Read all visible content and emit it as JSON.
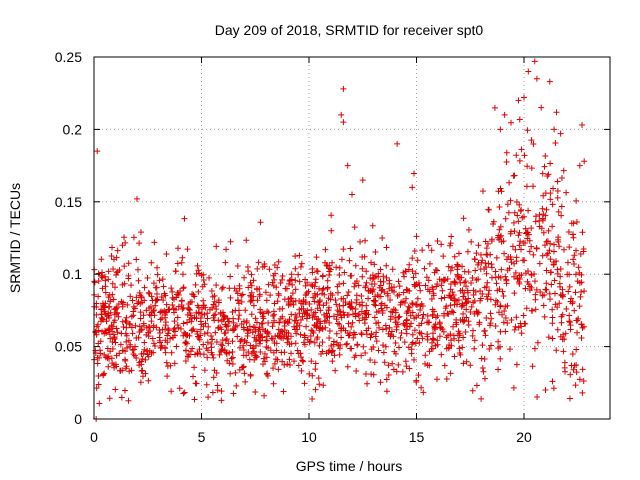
{
  "chart_data": {
    "type": "scatter",
    "title": "Day 209 of 2018, SRMTID for receiver spt0",
    "xlabel": "GPS time / hours",
    "ylabel": "SRMTID / TECUs",
    "xlim": [
      0,
      24
    ],
    "ylim": [
      0,
      0.25
    ],
    "xticks": [
      0,
      5,
      10,
      15,
      20
    ],
    "xtick_labels": [
      "0",
      "5",
      "10",
      "15",
      "20"
    ],
    "yticks": [
      0,
      0.05,
      0.1,
      0.15,
      0.2,
      0.25
    ],
    "ytick_labels": [
      "0",
      "0.05",
      "0.1",
      "0.15",
      "0.2",
      "0.25"
    ],
    "grid": true,
    "marker": "+",
    "marker_color": "#e00000",
    "x_data_range": [
      0,
      22.8
    ],
    "series": [
      {
        "name": "SRMTID",
        "points_note": "Approx. 2,000 points from 0 to ~22.8 h; bulk between 0.02 and 0.14 TECU, centred near 0.07; activity and spread increase after ~19 h reaching ~0.25.",
        "profile": [
          {
            "hour": 0,
            "median": 0.065
          },
          {
            "hour": 2,
            "median": 0.068
          },
          {
            "hour": 4,
            "median": 0.065
          },
          {
            "hour": 6,
            "median": 0.065
          },
          {
            "hour": 8,
            "median": 0.065
          },
          {
            "hour": 10,
            "median": 0.07
          },
          {
            "hour": 12,
            "median": 0.075
          },
          {
            "hour": 14,
            "median": 0.075
          },
          {
            "hour": 16,
            "median": 0.075
          },
          {
            "hour": 18,
            "median": 0.085
          },
          {
            "hour": 19,
            "median": 0.1
          },
          {
            "hour": 20,
            "median": 0.12
          },
          {
            "hour": 21,
            "median": 0.11
          },
          {
            "hour": 22,
            "median": 0.09
          },
          {
            "hour": 22.8,
            "median": 0.08
          }
        ],
        "outliers": [
          {
            "x": 0.15,
            "y": 0.185
          },
          {
            "x": 0.1,
            "y": 0.0
          },
          {
            "x": 2.0,
            "y": 0.152
          },
          {
            "x": 11.6,
            "y": 0.228
          },
          {
            "x": 11.5,
            "y": 0.21
          },
          {
            "x": 11.6,
            "y": 0.205
          },
          {
            "x": 11.8,
            "y": 0.175
          },
          {
            "x": 12.0,
            "y": 0.155
          },
          {
            "x": 12.5,
            "y": 0.165
          },
          {
            "x": 14.1,
            "y": 0.19
          },
          {
            "x": 14.8,
            "y": 0.16
          },
          {
            "x": 18.9,
            "y": 0.2
          },
          {
            "x": 19.1,
            "y": 0.21
          },
          {
            "x": 20.0,
            "y": 0.222
          },
          {
            "x": 20.2,
            "y": 0.24
          },
          {
            "x": 20.5,
            "y": 0.247
          },
          {
            "x": 20.6,
            "y": 0.235
          },
          {
            "x": 20.8,
            "y": 0.215
          },
          {
            "x": 21.2,
            "y": 0.233
          },
          {
            "x": 21.4,
            "y": 0.2
          },
          {
            "x": 22.7,
            "y": 0.203
          },
          {
            "x": 22.8,
            "y": 0.178
          },
          {
            "x": 21.0,
            "y": 0.02
          }
        ]
      }
    ]
  }
}
